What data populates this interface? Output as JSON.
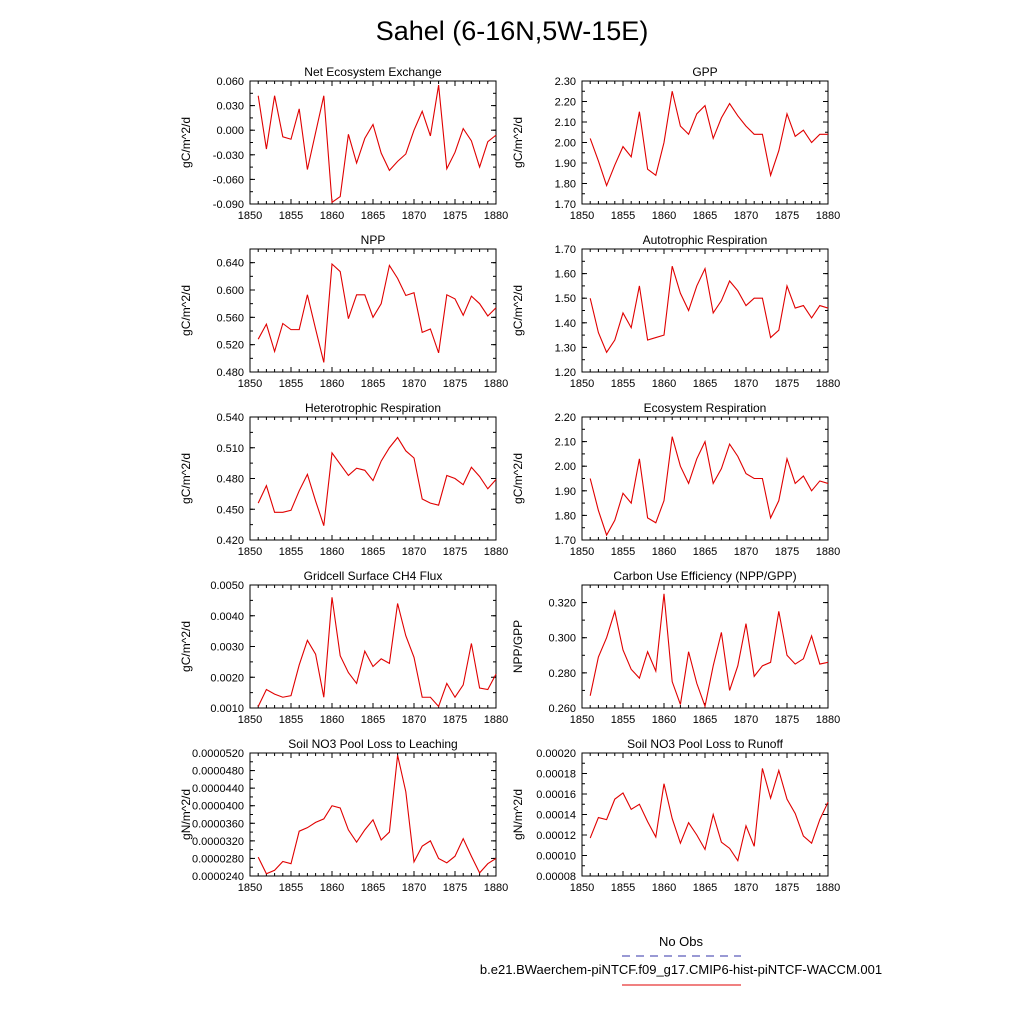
{
  "page": {
    "title": "Sahel (6-16N,5W-15E)"
  },
  "legend": {
    "obs_label": "No Obs",
    "obs_color": "#3333aa",
    "model_label": "b.e21.BWaerchem-piNTCF.f09_g17.CMIP6-hist-piNTCF-WACCM.001",
    "model_color": "#e00000"
  },
  "chart_data": [
    {
      "type": "line",
      "title": "Net Ecosystem Exchange",
      "ylabel": "gC/m^2/d",
      "xlim": [
        1850,
        1880
      ],
      "xticks": [
        "1850",
        "1855",
        "1860",
        "1865",
        "1870",
        "1875",
        "1880"
      ],
      "ylim": [
        -0.09,
        0.06
      ],
      "yticks": [
        "-0.090",
        "-0.060",
        "-0.030",
        "0.000",
        "0.030",
        "0.060"
      ],
      "color": "#e00000",
      "x": [
        1851,
        1852,
        1853,
        1854,
        1855,
        1856,
        1857,
        1858,
        1859,
        1860,
        1861,
        1862,
        1863,
        1864,
        1865,
        1866,
        1867,
        1868,
        1869,
        1870,
        1871,
        1872,
        1873,
        1874,
        1875,
        1876,
        1877,
        1878,
        1879,
        1880
      ],
      "y": [
        0.042,
        -0.023,
        0.042,
        -0.008,
        -0.011,
        0.026,
        -0.048,
        -0.003,
        0.042,
        -0.088,
        -0.081,
        -0.005,
        -0.04,
        -0.01,
        0.007,
        -0.028,
        -0.049,
        -0.038,
        -0.029,
        0.0,
        0.023,
        -0.007,
        0.055,
        -0.047,
        -0.027,
        0.002,
        -0.013,
        -0.045,
        -0.014,
        -0.006
      ]
    },
    {
      "type": "line",
      "title": "GPP",
      "ylabel": "gC/m^2/d",
      "xlim": [
        1850,
        1880
      ],
      "xticks": [
        "1850",
        "1855",
        "1860",
        "1865",
        "1870",
        "1875",
        "1880"
      ],
      "ylim": [
        1.7,
        2.3
      ],
      "yticks": [
        "1.70",
        "1.80",
        "1.90",
        "2.00",
        "2.10",
        "2.20",
        "2.30"
      ],
      "color": "#e00000",
      "x": [
        1851,
        1852,
        1853,
        1854,
        1855,
        1856,
        1857,
        1858,
        1859,
        1860,
        1861,
        1862,
        1863,
        1864,
        1865,
        1866,
        1867,
        1868,
        1869,
        1870,
        1871,
        1872,
        1873,
        1874,
        1875,
        1876,
        1877,
        1878,
        1879,
        1880
      ],
      "y": [
        2.02,
        1.91,
        1.79,
        1.89,
        1.98,
        1.93,
        2.15,
        1.87,
        1.84,
        2.0,
        2.25,
        2.08,
        2.04,
        2.14,
        2.18,
        2.02,
        2.12,
        2.19,
        2.13,
        2.08,
        2.04,
        2.04,
        1.84,
        1.96,
        2.14,
        2.03,
        2.06,
        2.0,
        2.04,
        2.04
      ]
    },
    {
      "type": "line",
      "title": "NPP",
      "ylabel": "gC/m^2/d",
      "xlim": [
        1850,
        1880
      ],
      "xticks": [
        "1850",
        "1855",
        "1860",
        "1865",
        "1870",
        "1875",
        "1880"
      ],
      "ylim": [
        0.48,
        0.66
      ],
      "yticks": [
        "0.480",
        "0.520",
        "0.560",
        "0.600",
        "0.640"
      ],
      "color": "#e00000",
      "x": [
        1851,
        1852,
        1853,
        1854,
        1855,
        1856,
        1857,
        1858,
        1859,
        1860,
        1861,
        1862,
        1863,
        1864,
        1865,
        1866,
        1867,
        1868,
        1869,
        1870,
        1871,
        1872,
        1873,
        1874,
        1875,
        1876,
        1877,
        1878,
        1879,
        1880
      ],
      "y": [
        0.528,
        0.55,
        0.51,
        0.551,
        0.542,
        0.542,
        0.593,
        0.543,
        0.494,
        0.638,
        0.627,
        0.558,
        0.593,
        0.593,
        0.56,
        0.58,
        0.636,
        0.617,
        0.592,
        0.596,
        0.538,
        0.543,
        0.508,
        0.593,
        0.587,
        0.563,
        0.591,
        0.58,
        0.562,
        0.574
      ]
    },
    {
      "type": "line",
      "title": "Autotrophic Respiration",
      "ylabel": "gC/m^2/d",
      "xlim": [
        1850,
        1880
      ],
      "xticks": [
        "1850",
        "1855",
        "1860",
        "1865",
        "1870",
        "1875",
        "1880"
      ],
      "ylim": [
        1.2,
        1.7
      ],
      "yticks": [
        "1.20",
        "1.30",
        "1.40",
        "1.50",
        "1.60",
        "1.70"
      ],
      "color": "#e00000",
      "x": [
        1851,
        1852,
        1853,
        1854,
        1855,
        1856,
        1857,
        1858,
        1859,
        1860,
        1861,
        1862,
        1863,
        1864,
        1865,
        1866,
        1867,
        1868,
        1869,
        1870,
        1871,
        1872,
        1873,
        1874,
        1875,
        1876,
        1877,
        1878,
        1879,
        1880
      ],
      "y": [
        1.5,
        1.36,
        1.28,
        1.33,
        1.44,
        1.38,
        1.55,
        1.33,
        1.34,
        1.35,
        1.63,
        1.52,
        1.45,
        1.55,
        1.62,
        1.44,
        1.49,
        1.57,
        1.53,
        1.47,
        1.5,
        1.5,
        1.34,
        1.37,
        1.55,
        1.46,
        1.47,
        1.42,
        1.47,
        1.46
      ]
    },
    {
      "type": "line",
      "title": "Heterotrophic Respiration",
      "ylabel": "gC/m^2/d",
      "xlim": [
        1850,
        1880
      ],
      "xticks": [
        "1850",
        "1855",
        "1860",
        "1865",
        "1870",
        "1875",
        "1880"
      ],
      "ylim": [
        0.42,
        0.54
      ],
      "yticks": [
        "0.420",
        "0.450",
        "0.480",
        "0.510",
        "0.540"
      ],
      "color": "#e00000",
      "x": [
        1851,
        1852,
        1853,
        1854,
        1855,
        1856,
        1857,
        1858,
        1859,
        1860,
        1861,
        1862,
        1863,
        1864,
        1865,
        1866,
        1867,
        1868,
        1869,
        1870,
        1871,
        1872,
        1873,
        1874,
        1875,
        1876,
        1877,
        1878,
        1879,
        1880
      ],
      "y": [
        0.456,
        0.473,
        0.447,
        0.447,
        0.449,
        0.468,
        0.484,
        0.458,
        0.434,
        0.505,
        0.494,
        0.483,
        0.49,
        0.488,
        0.478,
        0.497,
        0.51,
        0.52,
        0.507,
        0.5,
        0.46,
        0.456,
        0.454,
        0.483,
        0.48,
        0.474,
        0.491,
        0.482,
        0.47,
        0.479
      ]
    },
    {
      "type": "line",
      "title": "Ecosystem Respiration",
      "ylabel": "gC/m^2/d",
      "xlim": [
        1850,
        1880
      ],
      "xticks": [
        "1850",
        "1855",
        "1860",
        "1865",
        "1870",
        "1875",
        "1880"
      ],
      "ylim": [
        1.7,
        2.2
      ],
      "yticks": [
        "1.70",
        "1.80",
        "1.90",
        "2.00",
        "2.10",
        "2.20"
      ],
      "color": "#e00000",
      "x": [
        1851,
        1852,
        1853,
        1854,
        1855,
        1856,
        1857,
        1858,
        1859,
        1860,
        1861,
        1862,
        1863,
        1864,
        1865,
        1866,
        1867,
        1868,
        1869,
        1870,
        1871,
        1872,
        1873,
        1874,
        1875,
        1876,
        1877,
        1878,
        1879,
        1880
      ],
      "y": [
        1.95,
        1.82,
        1.72,
        1.78,
        1.89,
        1.85,
        2.03,
        1.79,
        1.77,
        1.86,
        2.12,
        2.0,
        1.93,
        2.03,
        2.1,
        1.93,
        1.99,
        2.09,
        2.04,
        1.97,
        1.95,
        1.95,
        1.79,
        1.86,
        2.03,
        1.93,
        1.96,
        1.9,
        1.94,
        1.93
      ]
    },
    {
      "type": "line",
      "title": "Gridcell Surface CH4 Flux",
      "ylabel": "gC/m^2/d",
      "xlim": [
        1850,
        1880
      ],
      "xticks": [
        "1850",
        "1855",
        "1860",
        "1865",
        "1870",
        "1875",
        "1880"
      ],
      "ylim": [
        0.001,
        0.005
      ],
      "yticks": [
        "0.0010",
        "0.0020",
        "0.0030",
        "0.0040",
        "0.0050"
      ],
      "color": "#e00000",
      "x": [
        1851,
        1852,
        1853,
        1854,
        1855,
        1856,
        1857,
        1858,
        1859,
        1860,
        1861,
        1862,
        1863,
        1864,
        1865,
        1866,
        1867,
        1868,
        1869,
        1870,
        1871,
        1872,
        1873,
        1874,
        1875,
        1876,
        1877,
        1878,
        1879,
        1880
      ],
      "y": [
        0.00105,
        0.0016,
        0.00145,
        0.00135,
        0.0014,
        0.0024,
        0.0032,
        0.00275,
        0.00135,
        0.0046,
        0.0027,
        0.00215,
        0.0018,
        0.00285,
        0.00235,
        0.0026,
        0.00245,
        0.0044,
        0.00335,
        0.00265,
        0.00135,
        0.00135,
        0.00105,
        0.0018,
        0.00135,
        0.00175,
        0.0031,
        0.00165,
        0.0016,
        0.0021
      ]
    },
    {
      "type": "line",
      "title": "Carbon Use Efficiency (NPP/GPP)",
      "ylabel": "NPP/GPP",
      "xlim": [
        1850,
        1880
      ],
      "xticks": [
        "1850",
        "1855",
        "1860",
        "1865",
        "1870",
        "1875",
        "1880"
      ],
      "ylim": [
        0.26,
        0.33
      ],
      "yticks": [
        "0.260",
        "0.280",
        "0.300",
        "0.320"
      ],
      "color": "#e00000",
      "x": [
        1851,
        1852,
        1853,
        1854,
        1855,
        1856,
        1857,
        1858,
        1859,
        1860,
        1861,
        1862,
        1863,
        1864,
        1865,
        1866,
        1867,
        1868,
        1869,
        1870,
        1871,
        1872,
        1873,
        1874,
        1875,
        1876,
        1877,
        1878,
        1879,
        1880
      ],
      "y": [
        0.267,
        0.289,
        0.3,
        0.315,
        0.293,
        0.282,
        0.277,
        0.292,
        0.281,
        0.325,
        0.275,
        0.262,
        0.292,
        0.274,
        0.261,
        0.284,
        0.303,
        0.27,
        0.284,
        0.308,
        0.278,
        0.284,
        0.286,
        0.315,
        0.29,
        0.285,
        0.288,
        0.301,
        0.285,
        0.286
      ]
    },
    {
      "type": "line",
      "title": "Soil NO3 Pool Loss to Leaching",
      "ylabel": "gN/m^2/d",
      "xlim": [
        1850,
        1880
      ],
      "xticks": [
        "1850",
        "1855",
        "1860",
        "1865",
        "1870",
        "1875",
        "1880"
      ],
      "ylim": [
        2.4e-05,
        5.2e-05
      ],
      "yticks": [
        "0.0000240",
        "0.0000280",
        "0.0000320",
        "0.0000360",
        "0.0000400",
        "0.0000440",
        "0.0000480",
        "0.0000520"
      ],
      "color": "#e00000",
      "x": [
        1851,
        1852,
        1853,
        1854,
        1855,
        1856,
        1857,
        1858,
        1859,
        1860,
        1861,
        1862,
        1863,
        1864,
        1865,
        1866,
        1867,
        1868,
        1869,
        1870,
        1871,
        1872,
        1873,
        1874,
        1875,
        1876,
        1877,
        1878,
        1879,
        1880
      ],
      "y": [
        2.83e-05,
        2.45e-05,
        2.53e-05,
        2.73e-05,
        2.68e-05,
        3.42e-05,
        3.5e-05,
        3.62e-05,
        3.7e-05,
        4e-05,
        3.95e-05,
        3.45e-05,
        3.17e-05,
        3.45e-05,
        3.68e-05,
        3.22e-05,
        3.4e-05,
        5.15e-05,
        4.32e-05,
        2.72e-05,
        3.08e-05,
        3.2e-05,
        2.8e-05,
        2.7e-05,
        2.85e-05,
        3.25e-05,
        2.85e-05,
        2.47e-05,
        2.68e-05,
        2.8e-05
      ]
    },
    {
      "type": "line",
      "title": "Soil NO3 Pool Loss to Runoff",
      "ylabel": "gN/m^2/d",
      "xlim": [
        1850,
        1880
      ],
      "xticks": [
        "1850",
        "1855",
        "1860",
        "1865",
        "1870",
        "1875",
        "1880"
      ],
      "ylim": [
        8e-05,
        0.0002
      ],
      "yticks": [
        "0.00008",
        "0.00010",
        "0.00012",
        "0.00014",
        "0.00016",
        "0.00018",
        "0.00020"
      ],
      "color": "#e00000",
      "x": [
        1851,
        1852,
        1853,
        1854,
        1855,
        1856,
        1857,
        1858,
        1859,
        1860,
        1861,
        1862,
        1863,
        1864,
        1865,
        1866,
        1867,
        1868,
        1869,
        1870,
        1871,
        1872,
        1873,
        1874,
        1875,
        1876,
        1877,
        1878,
        1879,
        1880
      ],
      "y": [
        0.000117,
        0.000137,
        0.000135,
        0.000155,
        0.000161,
        0.000145,
        0.00015,
        0.000133,
        0.000118,
        0.00017,
        0.000136,
        0.000112,
        0.000132,
        0.00012,
        0.000106,
        0.00014,
        0.000113,
        0.000107,
        9.5e-05,
        0.000129,
        0.000109,
        0.000185,
        0.000156,
        0.000183,
        0.000155,
        0.000141,
        0.000119,
        0.000112,
        0.000135,
        0.000152
      ]
    }
  ]
}
